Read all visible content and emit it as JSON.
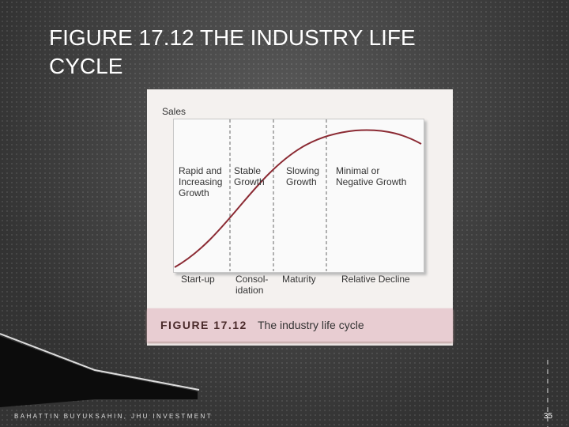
{
  "slide": {
    "title": "FIGURE 17.12 THE INDUSTRY LIFE CYCLE"
  },
  "figure": {
    "y_label": "Sales",
    "stages": [
      {
        "growth": "Rapid and\nIncreasing\nGrowth",
        "phase": "Start-up"
      },
      {
        "growth": "Stable\nGrowth",
        "phase": "Consol-\nidation"
      },
      {
        "growth": "Slowing\nGrowth",
        "phase": "Maturity"
      },
      {
        "growth": "Minimal or\nNegative Growth",
        "phase": "Relative Decline"
      }
    ],
    "caption_label": "FIGURE 17.12",
    "caption_text": "The industry life cycle"
  },
  "footer": {
    "author": "BAHATTIN BUYUKSAHIN, JHU INVESTMENT",
    "page": "35"
  }
}
